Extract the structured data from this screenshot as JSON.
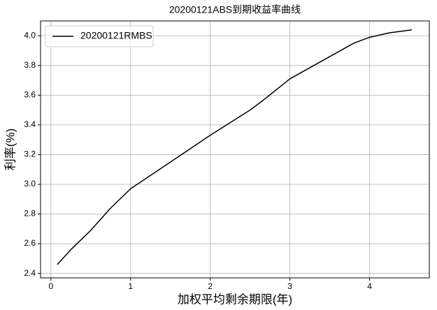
{
  "chart_data": {
    "type": "line",
    "title": "20200121ABS到期收益率曲线",
    "xlabel": "加权平均剩余期限(年)",
    "ylabel": "利率(%)",
    "x": [
      0.08,
      0.25,
      0.5,
      0.75,
      1.0,
      1.5,
      2.0,
      2.5,
      2.65,
      3.0,
      3.5,
      3.8,
      4.0,
      4.25,
      4.53
    ],
    "series": [
      {
        "name": "20200121RMBS",
        "color": "#000000",
        "values": [
          2.46,
          2.56,
          2.69,
          2.84,
          2.97,
          3.15,
          3.33,
          3.5,
          3.56,
          3.71,
          3.86,
          3.95,
          3.99,
          4.02,
          4.04
        ]
      }
    ],
    "xlim": [
      -0.13,
      4.75
    ],
    "ylim": [
      2.37,
      4.1
    ],
    "xticks": [
      0,
      1,
      2,
      3,
      4
    ],
    "yticks": [
      2.4,
      2.6,
      2.8,
      {
        "value": 3,
        "label": "3.0"
      },
      3.2,
      3.4,
      3.6,
      3.8,
      {
        "value": 4,
        "label": "4.0"
      }
    ],
    "grid": true,
    "legend": "upper left"
  }
}
